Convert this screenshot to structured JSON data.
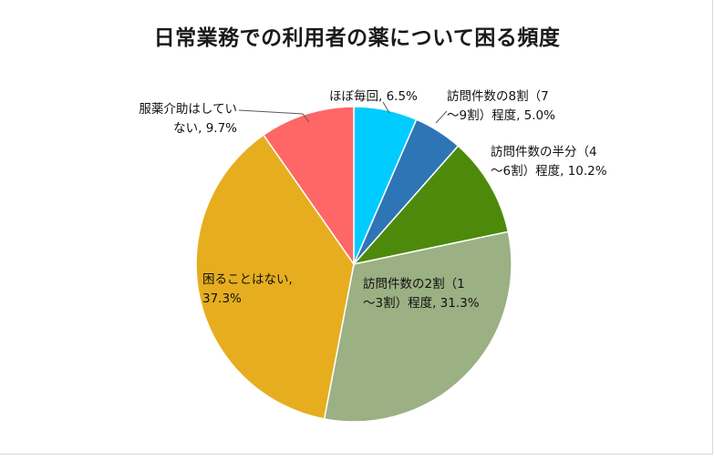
{
  "chart_data": {
    "type": "pie",
    "title": "日常業務での利用者の薬について困る頻度",
    "start_angle_deg": 0,
    "direction": "clockwise",
    "slices": [
      {
        "name": "ほぼ毎回",
        "value": 6.5,
        "color": "#00ccff",
        "label_lines": [
          "ほぼ毎回, 6.5%"
        ]
      },
      {
        "name": "訪問件数の8割（7〜9割）程度",
        "value": 5.0,
        "color": "#2e75b6",
        "label_lines": [
          "訪問件数の8割（7",
          "〜9割）程度, 5.0%"
        ]
      },
      {
        "name": "訪問件数の半分（4〜6割）程度",
        "value": 10.2,
        "color": "#4d8a0b",
        "label_lines": [
          "訪問件数の半分（4",
          "〜6割）程度, 10.2%"
        ]
      },
      {
        "name": "訪問件数の2割（1〜3割）程度",
        "value": 31.3,
        "color": "#9bb083",
        "label_lines": [
          "訪問件数の2割（1",
          "〜3割）程度, 31.3%"
        ]
      },
      {
        "name": "困ることはない",
        "value": 37.3,
        "color": "#e6ae1e",
        "label_lines": [
          "困ることはない,",
          "37.3%"
        ]
      },
      {
        "name": "服薬介助はしていない",
        "value": 9.7,
        "color": "#ff6666",
        "label_lines": [
          "服薬介助はしてい",
          "ない, 9.7%"
        ]
      }
    ]
  }
}
